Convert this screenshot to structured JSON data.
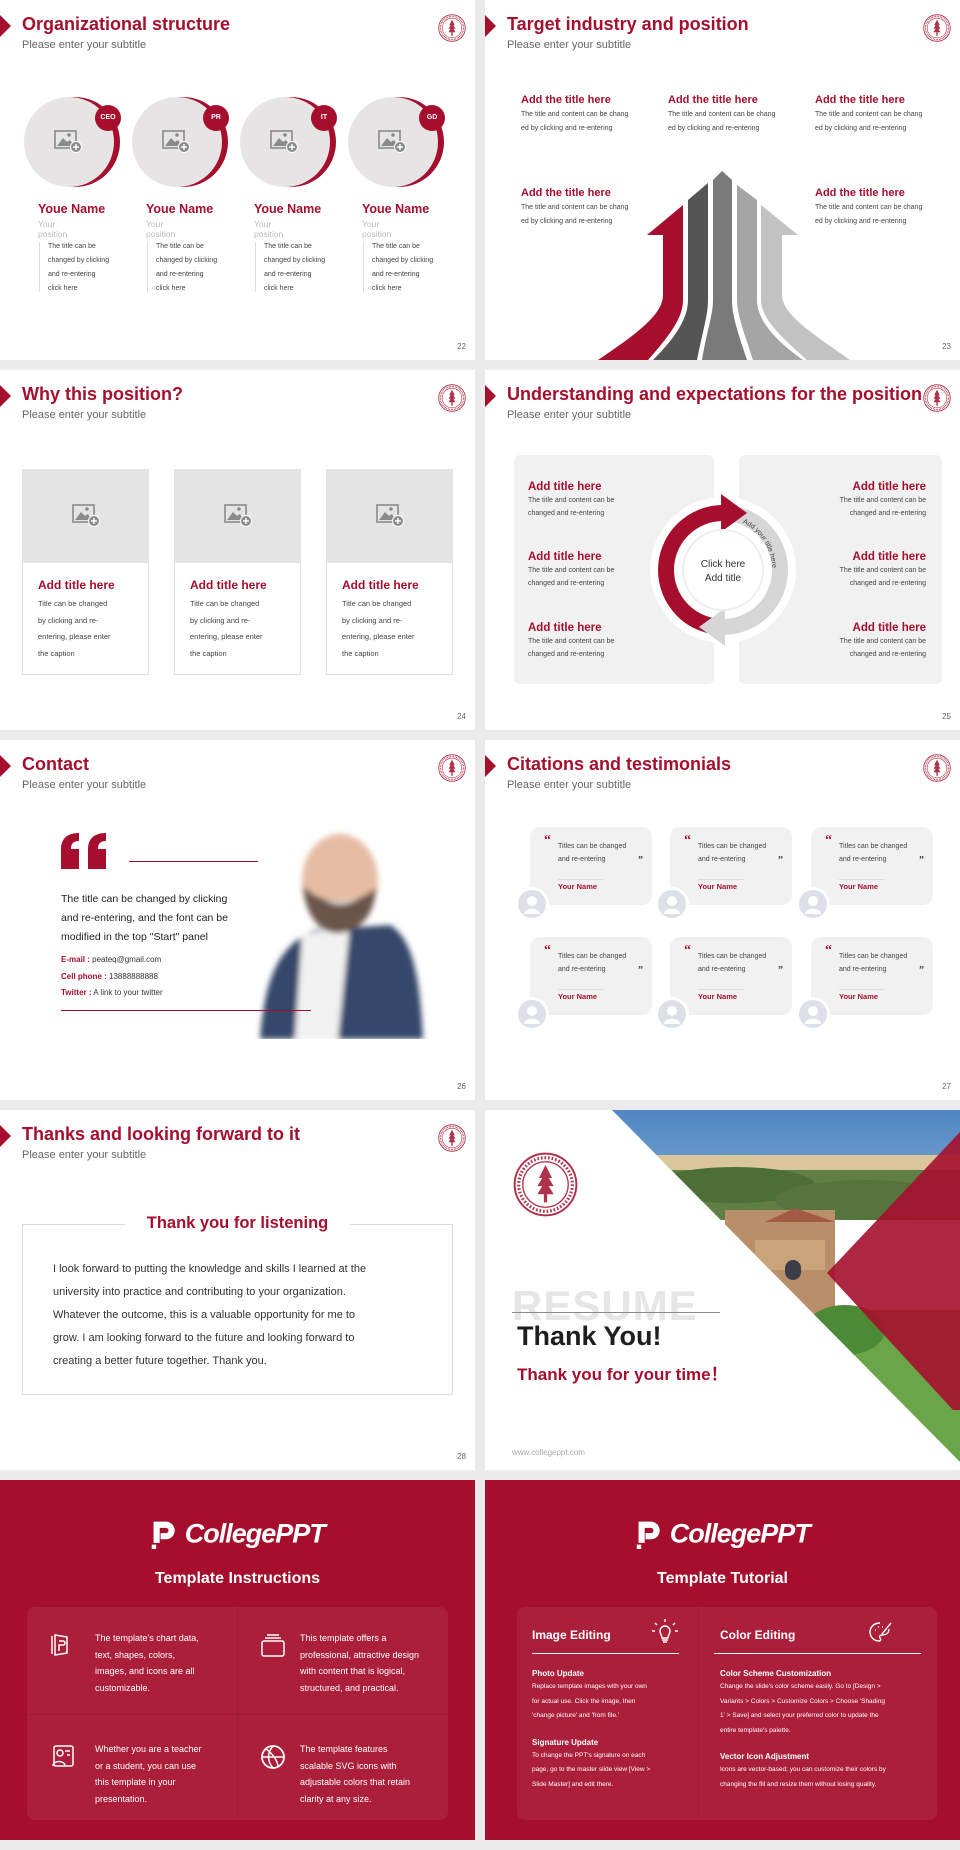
{
  "colors": {
    "accent": "#a50f2d",
    "panel": "#f1f1f1"
  },
  "common": {
    "subtitle": "Please enter your subtitle"
  },
  "s22": {
    "title": "Organizational structure",
    "page": "22",
    "people": [
      {
        "badge": "CEO",
        "name": "Youe Name",
        "position": "Your position",
        "desc": [
          "The title can be",
          "changed by clicking",
          "and re-entering",
          "click here"
        ]
      },
      {
        "badge": "PR",
        "name": "Youe Name",
        "position": "Your position",
        "desc": [
          "The title can be",
          "changed by clicking",
          "and re-entering",
          "click here"
        ]
      },
      {
        "badge": "IT",
        "name": "Youe Name",
        "position": "Your position",
        "desc": [
          "The title can be",
          "changed by clicking",
          "and re-entering",
          "click here"
        ]
      },
      {
        "badge": "GD",
        "name": "Youe Name",
        "position": "Your position",
        "desc": [
          "The title can be",
          "changed by clicking",
          "and re-entering",
          "click here"
        ]
      }
    ]
  },
  "s23": {
    "title": "Target industry and position",
    "page": "23",
    "items": [
      {
        "title": "Add the title here",
        "body": [
          "The title and content can be chang",
          "ed by clicking and re-entering"
        ]
      },
      {
        "title": "Add the title here",
        "body": [
          "The title and content can be chang",
          "ed by clicking and re-entering"
        ]
      },
      {
        "title": "Add the title here",
        "body": [
          "The title and content can be chang",
          "ed by clicking and re-entering"
        ]
      },
      {
        "title": "Add the title here",
        "body": [
          "The title and content can be chang",
          "ed by clicking and re-entering"
        ]
      },
      {
        "title": "Add the title here",
        "body": [
          "The title and content can be chang",
          "ed by clicking and re-entering"
        ]
      }
    ]
  },
  "s24": {
    "title": "Why this position?",
    "page": "24",
    "cards": [
      {
        "title": "Add title here",
        "body": [
          "Title can be changed",
          "by clicking and re-",
          "entering, please enter",
          "the caption"
        ]
      },
      {
        "title": "Add title here",
        "body": [
          "Title can be changed",
          "by clicking and re-",
          "entering, please enter",
          "the caption"
        ]
      },
      {
        "title": "Add title here",
        "body": [
          "Title can be changed",
          "by clicking and re-",
          "entering, please enter",
          "the caption"
        ]
      }
    ]
  },
  "s25": {
    "title": "Understanding and expectations for the position",
    "page": "25",
    "center": [
      "Click here",
      "Add title"
    ],
    "arc_left": "Add your title here",
    "arc_right": "Add your title here",
    "items": [
      {
        "title": "Add title here",
        "body": [
          "The title and content can be",
          "changed and re-entering"
        ]
      },
      {
        "title": "Add title here",
        "body": [
          "The title and content can be",
          "changed and re-entering"
        ]
      },
      {
        "title": "Add title here",
        "body": [
          "The title and content can be",
          "changed and re-entering"
        ]
      },
      {
        "title": "Add title here",
        "body": [
          "The title and content can be",
          "changed and re-entering"
        ]
      },
      {
        "title": "Add title here",
        "body": [
          "The title and content can be",
          "changed and re-entering"
        ]
      },
      {
        "title": "Add title here",
        "body": [
          "The title and content can be",
          "changed and re-entering"
        ]
      }
    ]
  },
  "s26": {
    "title": "Contact",
    "page": "26",
    "quote": [
      "The title can be changed by clicking",
      "and re-entering, and the font can be",
      "modified in the top \"Start\" panel"
    ],
    "email_label": "E-mail :",
    "email": "peateq@gmail.com",
    "phone_label": "Cell phone  :",
    "phone": "13888888888",
    "twitter_label": "Twitter :",
    "twitter": "A link to your twitter"
  },
  "s27": {
    "title": "Citations and testimonials",
    "page": "27",
    "cards": [
      {
        "text": [
          "Titles can be changed",
          "and re-entering"
        ],
        "name": "Your Name"
      },
      {
        "text": [
          "Titles can be changed",
          "and re-entering"
        ],
        "name": "Your Name"
      },
      {
        "text": [
          "Titles can be changed",
          "and re-entering"
        ],
        "name": "Your Name"
      },
      {
        "text": [
          "Titles can be changed",
          "and re-entering"
        ],
        "name": "Your Name"
      },
      {
        "text": [
          "Titles can be changed",
          "and re-entering"
        ],
        "name": "Your Name"
      },
      {
        "text": [
          "Titles can be changed",
          "and re-entering"
        ],
        "name": "Your Name"
      }
    ]
  },
  "s28": {
    "title": "Thanks and looking forward to it",
    "page": "28",
    "box_title": "Thank you for listening",
    "body": [
      "I look forward to putting the knowledge and skills I learned at the",
      "university into practice and contributing to your organization.",
      "Whatever the outcome, this is a valuable opportunity for me to",
      "grow. I am looking forward to the future and looking forward to",
      "creating a better future together. Thank you."
    ]
  },
  "s29": {
    "watermark": "RESUME",
    "heading": "Thank You!",
    "tagline": "Thank you for your time！",
    "url": "www.collegeppt.com"
  },
  "s30": {
    "logo": "CollegePPT",
    "title": "Template Instructions",
    "items": [
      {
        "icon": "book-icon",
        "text": [
          "The template's chart data,",
          "text, shapes, colors,",
          "images, and icons are all",
          "customizable."
        ]
      },
      {
        "icon": "layers-icon",
        "text": [
          "This template offers a",
          "professional, attractive design",
          "with content that is logical,",
          "structured, and practical."
        ]
      },
      {
        "icon": "teacher-icon",
        "text": [
          "Whether you are a teacher",
          "or a student, you can use",
          "this template in your",
          "presentation."
        ]
      },
      {
        "icon": "ball-icon",
        "text": [
          "The template features",
          "scalable SVG icons with",
          "adjustable colors that retain",
          "clarity at any size."
        ]
      }
    ]
  },
  "s31": {
    "logo": "CollegePPT",
    "title": "Template Tutorial",
    "left": {
      "heading": "Image Editing",
      "icon": "lightbulb-icon",
      "sections": [
        {
          "title": "Photo Update",
          "body": [
            "Replace template images with your own",
            "for actual use. Click the image, then",
            "'change picture' and 'from file.'"
          ]
        },
        {
          "title": "Signature Update",
          "body": [
            "To change the PPT's signature on each",
            "page, go to the master slide view [View >",
            "Slide Master] and edit there."
          ]
        }
      ]
    },
    "right": {
      "heading": "Color Editing",
      "icon": "palette-icon",
      "sections": [
        {
          "title": "Color Scheme Customization",
          "body": [
            "Change the slide's color scheme easily. Go to [Design >",
            "Variants > Colors > Customize Colors > Choose 'Shading",
            "1' > Save] and select your preferred color to update the",
            "entire template's palette."
          ]
        },
        {
          "title": "Vector Icon Adjustment",
          "body": [
            "Icons are vector-based; you can customize their colors by",
            "changing the fill and resize them without losing quality."
          ]
        }
      ]
    }
  }
}
